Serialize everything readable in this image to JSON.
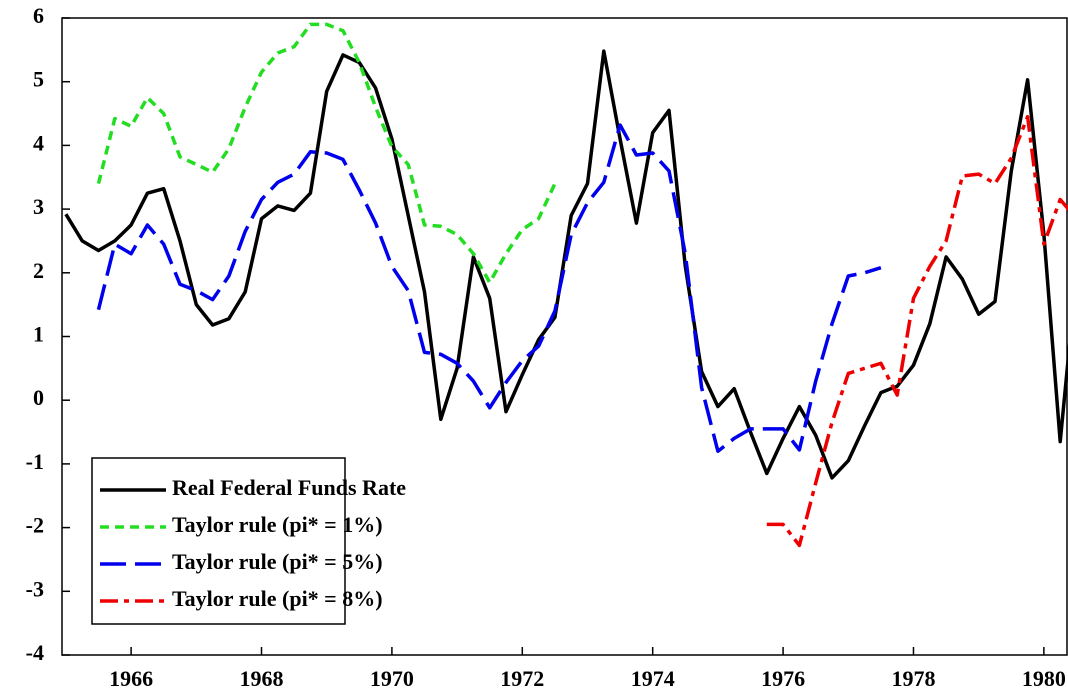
{
  "chart_data": {
    "type": "line",
    "x": [
      1965,
      1965.25,
      1965.5,
      1965.75,
      1966,
      1966.25,
      1966.5,
      1966.75,
      1967,
      1967.25,
      1967.5,
      1967.75,
      1968,
      1968.25,
      1968.5,
      1968.75,
      1969,
      1969.25,
      1969.5,
      1969.75,
      1970,
      1970.25,
      1970.5,
      1970.75,
      1971,
      1971.25,
      1971.5,
      1971.75,
      1972,
      1972.25,
      1972.5,
      1972.75,
      1973,
      1973.25,
      1973.5,
      1973.75,
      1974,
      1974.25,
      1974.5,
      1974.75,
      1975,
      1975.25,
      1975.5,
      1975.75,
      1976,
      1976.25,
      1976.5,
      1976.75,
      1977,
      1977.25,
      1977.5,
      1977.75,
      1978,
      1978.25,
      1978.5,
      1978.75,
      1979,
      1979.25,
      1979.5,
      1979.75,
      1980,
      1980.25,
      1980.5
    ],
    "series": [
      {
        "name": "Real Federal Funds Rate",
        "color": "#000000",
        "values": [
          2.92,
          2.5,
          2.35,
          2.5,
          2.75,
          3.25,
          3.32,
          2.5,
          1.5,
          1.18,
          1.28,
          1.7,
          2.85,
          3.05,
          2.98,
          3.25,
          4.85,
          5.42,
          5.3,
          4.9,
          4.1,
          2.9,
          1.7,
          -0.3,
          0.5,
          2.25,
          1.6,
          -0.18,
          0.4,
          0.95,
          1.3,
          2.9,
          3.4,
          5.48,
          4.1,
          2.78,
          4.2,
          4.55,
          2.1,
          0.45,
          -0.1,
          0.18,
          -0.5,
          -1.15,
          -0.6,
          -0.1,
          -0.55,
          -1.22,
          -0.95,
          -0.4,
          0.12,
          0.22,
          0.55,
          1.2,
          2.25,
          1.9,
          1.35,
          1.55,
          3.6,
          5.03,
          2.6,
          -0.65,
          2.0
        ]
      },
      {
        "name": "Taylor rule (pi* = 1%)",
        "color": "#22dd22",
        "values": [
          null,
          null,
          3.4,
          4.42,
          4.3,
          4.75,
          4.5,
          3.82,
          3.7,
          3.58,
          3.95,
          4.6,
          5.15,
          5.45,
          5.55,
          5.9,
          5.9,
          5.8,
          5.3,
          4.6,
          3.98,
          3.7,
          2.75,
          2.73,
          2.6,
          2.3,
          1.85,
          2.3,
          2.68,
          2.85,
          3.4,
          null,
          null,
          null,
          null,
          null,
          null,
          null,
          null,
          null,
          null,
          null,
          null,
          null,
          null,
          null,
          null,
          null,
          null,
          null,
          null,
          null,
          null,
          null,
          null,
          null,
          null,
          null,
          null,
          null,
          null,
          null,
          null
        ]
      },
      {
        "name": "Taylor rule (pi* = 5%)",
        "color": "#0000ee",
        "values": [
          null,
          null,
          1.42,
          2.45,
          2.3,
          2.75,
          2.45,
          1.82,
          1.72,
          1.58,
          1.95,
          2.65,
          3.15,
          3.42,
          3.55,
          3.9,
          3.88,
          3.78,
          3.3,
          2.78,
          2.1,
          1.72,
          0.75,
          0.72,
          0.58,
          0.3,
          -0.12,
          0.28,
          0.62,
          0.85,
          1.4,
          2.6,
          3.1,
          3.42,
          4.32,
          3.85,
          3.88,
          3.6,
          2.3,
          0.2,
          -0.8,
          -0.6,
          -0.45,
          -0.45,
          -0.45,
          -0.78,
          0.3,
          1.2,
          1.95,
          2.0,
          2.08,
          null,
          null,
          null,
          null,
          null,
          null,
          null,
          null,
          null,
          null,
          null,
          null
        ]
      },
      {
        "name": "Taylor rule (pi* = 8%)",
        "color": "#ee0000",
        "values": [
          null,
          null,
          null,
          null,
          null,
          null,
          null,
          null,
          null,
          null,
          null,
          null,
          null,
          null,
          null,
          null,
          null,
          null,
          null,
          null,
          null,
          null,
          null,
          null,
          null,
          null,
          null,
          null,
          null,
          null,
          null,
          null,
          null,
          null,
          null,
          null,
          null,
          null,
          null,
          null,
          null,
          null,
          null,
          -1.95,
          -1.95,
          -2.28,
          -1.3,
          -0.35,
          0.42,
          0.5,
          0.58,
          0.08,
          1.6,
          2.1,
          2.5,
          3.52,
          3.55,
          3.4,
          3.8,
          4.45,
          2.45,
          3.15,
          2.85
        ]
      }
    ],
    "xlim": [
      1964.94,
      1980.37
    ],
    "xticks": [
      1966,
      1968,
      1970,
      1972,
      1974,
      1976,
      1978,
      1980
    ],
    "ylim": [
      -4,
      6
    ],
    "yticks": [
      -4,
      -3,
      -2,
      -1,
      0,
      1,
      2,
      3,
      4,
      5,
      6
    ],
    "legend": "lower left"
  }
}
